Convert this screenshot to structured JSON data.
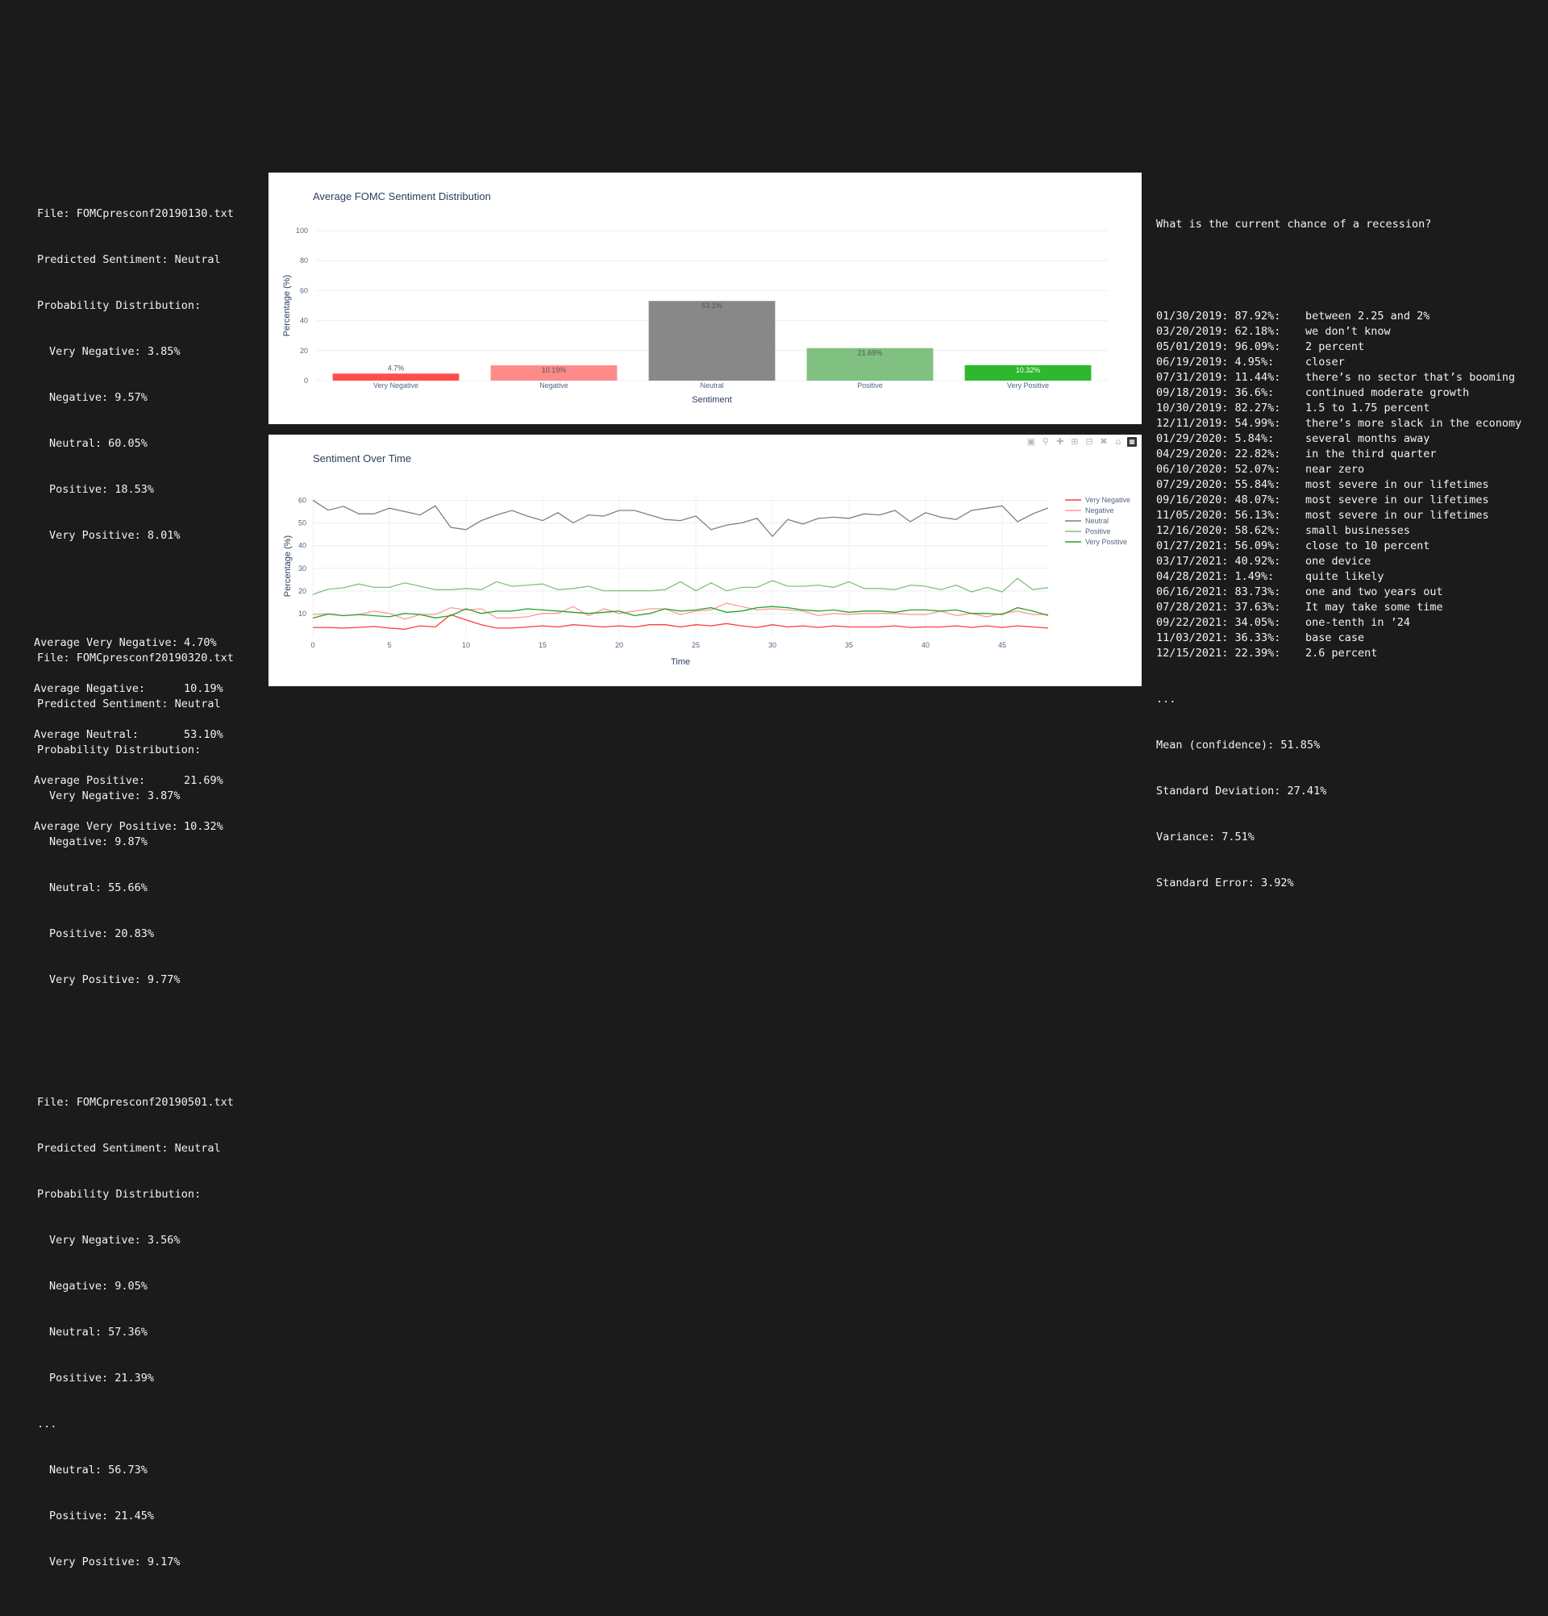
{
  "left": {
    "files": [
      {
        "file": "File: FOMCpresconf20190130.txt",
        "predicted": "Predicted Sentiment: Neutral",
        "dist_header": "Probability Distribution:",
        "probs": [
          "Very Negative: 3.85%",
          "Negative: 9.57%",
          "Neutral: 60.05%",
          "Positive: 18.53%",
          "Very Positive: 8.01%"
        ]
      },
      {
        "file": "File: FOMCpresconf20190320.txt",
        "predicted": "Predicted Sentiment: Neutral",
        "dist_header": "Probability Distribution:",
        "probs": [
          "Very Negative: 3.87%",
          "Negative: 9.87%",
          "Neutral: 55.66%",
          "Positive: 20.83%",
          "Very Positive: 9.77%"
        ]
      },
      {
        "file": "File: FOMCpresconf20190501.txt",
        "predicted": "Predicted Sentiment: Neutral",
        "dist_header": "Probability Distribution:",
        "probs": [
          "Very Negative: 3.56%",
          "Negative: 9.05%",
          "Neutral: 57.36%",
          "Positive: 21.39%"
        ]
      }
    ],
    "ellipsis": "...",
    "tail": [
      "Neutral: 56.73%",
      "Positive: 21.45%",
      "Very Positive: 9.17%"
    ],
    "averages": [
      {
        "label": "Average Very Negative:",
        "value": "4.70%"
      },
      {
        "label": "Average Negative:",
        "value": "10.19%"
      },
      {
        "label": "Average Neutral:",
        "value": "53.10%"
      },
      {
        "label": "Average Positive:",
        "value": "21.69%"
      },
      {
        "label": "Average Very Positive:",
        "value": "10.32%"
      }
    ]
  },
  "modebar_icons": [
    "camera-icon",
    "zoom-icon",
    "pan-icon",
    "zoom-in-icon",
    "zoom-out-icon",
    "autoscale-icon",
    "home-icon",
    "plotly-logo"
  ],
  "chart_data": [
    {
      "type": "bar",
      "title": "Average FOMC Sentiment Distribution",
      "xlabel": "Sentiment",
      "ylabel": "Percentage (%)",
      "ylim": [
        0,
        100
      ],
      "yticks": [
        "0",
        "20",
        "40",
        "60",
        "80",
        "100"
      ],
      "categories": [
        "Very Negative",
        "Negative",
        "Neutral",
        "Positive",
        "Very Positive"
      ],
      "values": [
        4.7,
        10.19,
        53.1,
        21.69,
        10.32
      ],
      "value_labels": [
        "4.7%",
        "10.19%",
        "53.1%",
        "21.69%",
        "10.32%"
      ],
      "colors": [
        "#ff4d4d",
        "#ff8a8a",
        "#888888",
        "#80c080",
        "#2db82d"
      ],
      "label_colors": [
        "#555555",
        "#555555",
        "#555555",
        "#555555",
        "#ffffff"
      ],
      "grid": true
    },
    {
      "type": "line",
      "title": "Sentiment Over Time",
      "xlabel": "Time",
      "ylabel": "Percentage (%)",
      "xlim": [
        0,
        48
      ],
      "ylim": [
        0,
        62
      ],
      "xticks": [
        "0",
        "5",
        "10",
        "15",
        "20",
        "25",
        "30",
        "35",
        "40",
        "45"
      ],
      "yticks": [
        "10",
        "20",
        "30",
        "40",
        "50",
        "60"
      ],
      "legend_position": "top-right",
      "grid": true,
      "x": [
        0,
        1,
        2,
        3,
        4,
        5,
        6,
        7,
        8,
        9,
        10,
        11,
        12,
        13,
        14,
        15,
        16,
        17,
        18,
        19,
        20,
        21,
        22,
        23,
        24,
        25,
        26,
        27,
        28,
        29,
        30,
        31,
        32,
        33,
        34,
        35,
        36,
        37,
        38,
        39,
        40,
        41,
        42,
        43,
        44,
        45,
        46,
        47,
        48
      ],
      "series": [
        {
          "name": "Very Negative",
          "color": "#ff3b3b",
          "values": [
            3.9,
            3.9,
            3.6,
            3.9,
            4.3,
            3.6,
            3.1,
            4.6,
            4.1,
            9.5,
            7.2,
            5.1,
            3.6,
            3.6,
            4.1,
            4.6,
            4.1,
            5.1,
            4.6,
            4.1,
            4.6,
            4.1,
            5.1,
            5.1,
            4.1,
            5.1,
            4.6,
            5.6,
            4.6,
            3.9,
            5.1,
            4.1,
            4.6,
            3.9,
            4.6,
            4.1,
            4.1,
            4.1,
            4.6,
            3.9,
            4.1,
            4.1,
            4.6,
            3.9,
            4.6,
            3.9,
            4.6,
            4.1,
            3.6
          ]
        },
        {
          "name": "Negative",
          "color": "#ff9a9a",
          "values": [
            9.6,
            9.9,
            9.1,
            9.6,
            11.1,
            10.1,
            7.6,
            9.6,
            9.6,
            12.6,
            11.6,
            12.1,
            8.1,
            8.1,
            8.6,
            10.1,
            10.1,
            13.1,
            9.1,
            12.1,
            10.1,
            11.1,
            12.1,
            12.1,
            9.6,
            11.1,
            11.6,
            14.6,
            13.1,
            11.6,
            12.1,
            11.6,
            11.1,
            9.1,
            10.1,
            9.6,
            10.1,
            10.1,
            10.1,
            9.6,
            9.6,
            11.1,
            9.1,
            10.1,
            8.6,
            10.1,
            11.1,
            9.6,
            9.6
          ]
        },
        {
          "name": "Neutral",
          "color": "#7f7f7f",
          "values": [
            60.1,
            55.7,
            57.4,
            54.1,
            54.1,
            56.6,
            55.1,
            53.6,
            57.6,
            48.1,
            47.1,
            51.1,
            53.6,
            55.6,
            53.1,
            51.1,
            54.6,
            50.1,
            53.6,
            53.1,
            55.6,
            55.6,
            53.6,
            51.6,
            51.1,
            53.1,
            47.1,
            49.1,
            50.1,
            52.1,
            44.1,
            51.6,
            49.6,
            52.1,
            52.6,
            52.1,
            54.1,
            53.6,
            55.6,
            50.6,
            54.6,
            52.6,
            51.6,
            55.6,
            56.6,
            57.6,
            50.6,
            54.1,
            56.7
          ]
        },
        {
          "name": "Positive",
          "color": "#80c080",
          "values": [
            18.5,
            20.8,
            21.4,
            23.1,
            21.6,
            21.6,
            23.6,
            22.1,
            20.6,
            20.6,
            21.1,
            20.6,
            24.1,
            22.1,
            22.6,
            23.1,
            20.6,
            21.1,
            22.1,
            20.1,
            20.1,
            20.1,
            20.1,
            20.6,
            24.1,
            20.1,
            23.6,
            20.1,
            21.6,
            21.6,
            24.6,
            22.1,
            22.1,
            22.6,
            21.6,
            24.1,
            21.1,
            21.1,
            20.6,
            22.6,
            22.1,
            20.6,
            22.6,
            19.6,
            21.6,
            19.6,
            25.6,
            20.6,
            21.5
          ]
        },
        {
          "name": "Very Positive",
          "color": "#2aa02a",
          "values": [
            8.0,
            9.8,
            9.1,
            9.6,
            9.1,
            8.6,
            10.1,
            9.6,
            8.1,
            9.1,
            12.1,
            10.1,
            11.1,
            11.1,
            12.1,
            11.6,
            11.1,
            10.6,
            10.1,
            10.6,
            11.1,
            9.1,
            10.1,
            12.1,
            11.1,
            11.6,
            12.6,
            10.6,
            11.1,
            12.6,
            13.1,
            12.6,
            11.6,
            11.1,
            11.6,
            10.6,
            11.1,
            11.1,
            10.6,
            11.6,
            11.6,
            11.1,
            11.6,
            10.1,
            10.1,
            9.6,
            12.6,
            11.1,
            9.2
          ]
        }
      ]
    }
  ],
  "right": {
    "question": "What is the current chance of a recession?",
    "rows": [
      {
        "date": "01/30/2019: 87.92%:",
        "text": "between 2.25 and 2%"
      },
      {
        "date": "03/20/2019: 62.18%:",
        "text": "we don’t know"
      },
      {
        "date": "05/01/2019: 96.09%:",
        "text": "2 percent"
      },
      {
        "date": "06/19/2019: 4.95%:",
        "text": "closer"
      },
      {
        "date": "07/31/2019: 11.44%:",
        "text": "there’s no sector that’s booming"
      },
      {
        "date": "09/18/2019: 36.6%:",
        "text": "continued moderate growth"
      },
      {
        "date": "10/30/2019: 82.27%:",
        "text": "1.5 to 1.75 percent"
      },
      {
        "date": "12/11/2019: 54.99%:",
        "text": "there’s more slack in the economy"
      },
      {
        "date": "01/29/2020: 5.84%:",
        "text": "several months away"
      },
      {
        "date": "04/29/2020: 22.82%:",
        "text": "in the third quarter"
      },
      {
        "date": "06/10/2020: 52.07%:",
        "text": "near zero"
      },
      {
        "date": "07/29/2020: 55.84%:",
        "text": "most severe in our lifetimes"
      },
      {
        "date": "09/16/2020: 48.07%:",
        "text": "most severe in our lifetimes"
      },
      {
        "date": "11/05/2020: 56.13%:",
        "text": "most severe in our lifetimes"
      },
      {
        "date": "12/16/2020: 58.62%:",
        "text": "small businesses"
      },
      {
        "date": "01/27/2021: 56.09%:",
        "text": "close to 10 percent"
      },
      {
        "date": "03/17/2021: 40.92%:",
        "text": "one device"
      },
      {
        "date": "04/28/2021: 1.49%:",
        "text": "quite likely"
      },
      {
        "date": "06/16/2021: 83.73%:",
        "text": "one and two years out"
      },
      {
        "date": "07/28/2021: 37.63%:",
        "text": "It may take some time"
      },
      {
        "date": "09/22/2021: 34.05%:",
        "text": "one-tenth in ’24"
      },
      {
        "date": "11/03/2021: 36.33%:",
        "text": "base case"
      },
      {
        "date": "12/15/2021: 22.39%:",
        "text": "2.6 percent"
      }
    ],
    "ellipsis": "...",
    "stats": [
      "Mean (confidence): 51.85%",
      "Standard Deviation: 27.41%",
      "Variance: 7.51%",
      "Standard Error: 3.92%"
    ]
  }
}
